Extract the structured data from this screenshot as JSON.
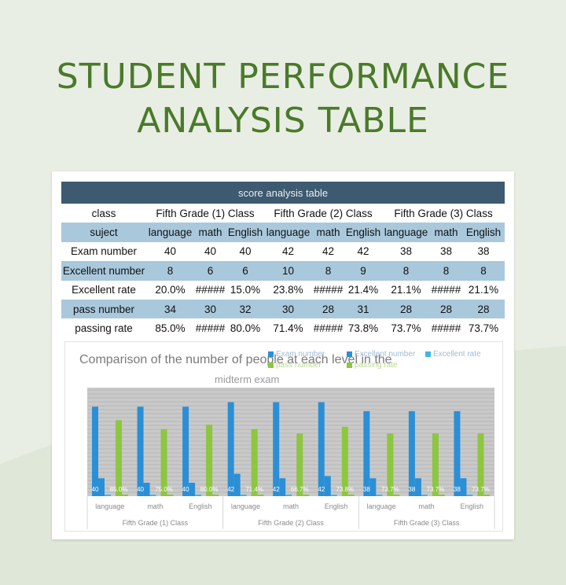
{
  "title_line1": "STUDENT PERFORMANCE",
  "title_line2": "ANALYSIS TABLE",
  "table": {
    "header": "score analysis table",
    "class_label": "class",
    "classes": [
      "Fifth Grade (1) Class",
      "Fifth Grade (2) Class",
      "Fifth Grade (3) Class"
    ],
    "subject_label": "suject",
    "subjects": [
      "language",
      "math",
      "English",
      "language",
      "math",
      "English",
      "language",
      "math",
      "English"
    ],
    "rows": [
      {
        "label": "Exam number",
        "values": [
          "40",
          "40",
          "40",
          "42",
          "42",
          "42",
          "38",
          "38",
          "38"
        ]
      },
      {
        "label": "Excellent number",
        "values": [
          "8",
          "6",
          "6",
          "10",
          "8",
          "9",
          "8",
          "8",
          "8"
        ]
      },
      {
        "label": "Excellent rate",
        "values": [
          "20.0%",
          "#####",
          "15.0%",
          "23.8%",
          "#####",
          "21.4%",
          "21.1%",
          "#####",
          "21.1%"
        ]
      },
      {
        "label": "pass number",
        "values": [
          "34",
          "30",
          "32",
          "30",
          "28",
          "31",
          "28",
          "28",
          "28"
        ]
      },
      {
        "label": "passing rate",
        "values": [
          "85.0%",
          "#####",
          "80.0%",
          "71.4%",
          "#####",
          "73.8%",
          "73.7%",
          "#####",
          "73.7%"
        ]
      }
    ]
  },
  "chart": {
    "title": "Comparison of the number of people at each level in the",
    "title2": "midterm exam",
    "legend": [
      "Exam number",
      "Excellent number",
      "Excellent rate",
      "pass number",
      "passing rate"
    ],
    "legend_colors": [
      "#2b8fd6",
      "#2b8fd6",
      "#41b6e6",
      "#8dc63f",
      "#8dc63f"
    ]
  },
  "chart_data": {
    "type": "bar",
    "title": "Comparison of the number of people at each level in the midterm exam",
    "categories": [
      "language",
      "math",
      "English",
      "language",
      "math",
      "English",
      "language",
      "math",
      "English"
    ],
    "groups": [
      "Fifth Grade (1) Class",
      "Fifth Grade (2) Class",
      "Fifth Grade (3) Class"
    ],
    "series": [
      {
        "name": "Exam number",
        "values": [
          40,
          40,
          40,
          42,
          42,
          42,
          38,
          38,
          38
        ],
        "color": "#2b8fd6"
      },
      {
        "name": "Excellent number",
        "values": [
          8,
          6,
          6,
          10,
          8,
          9,
          8,
          8,
          8
        ],
        "color": "#2b8fd6"
      },
      {
        "name": "Excellent rate",
        "values": [
          0.2,
          0.15,
          0.15,
          0.238,
          0.19,
          0.214,
          0.211,
          0.211,
          0.211
        ],
        "color": "#41b6e6"
      },
      {
        "name": "pass number",
        "values": [
          34,
          30,
          32,
          30,
          28,
          31,
          28,
          28,
          28
        ],
        "color": "#8dc63f"
      },
      {
        "name": "passing rate",
        "values": [
          0.85,
          0.75,
          0.8,
          0.714,
          0.667,
          0.738,
          0.737,
          0.737,
          0.737
        ],
        "color": "#8dc63f"
      }
    ],
    "data_labels": [
      "40",
      "85.0%",
      "40",
      "75.0%",
      "40",
      "80.0%",
      "42",
      "71.4%",
      "42",
      "66.7%",
      "42",
      "73.8%",
      "38",
      "73.7%",
      "38",
      "73.7%",
      "38",
      "73.7%"
    ],
    "ylim": [
      0,
      45
    ],
    "grid": true,
    "legend_position": "top-right"
  }
}
